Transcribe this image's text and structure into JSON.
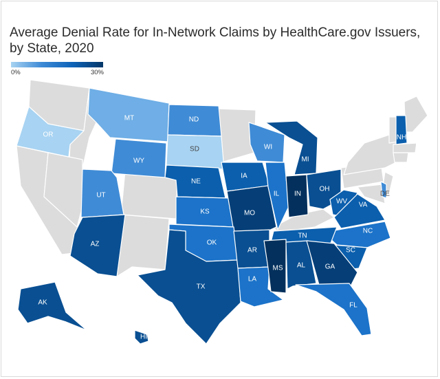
{
  "title": "Average Denial Rate for In-Network Claims by HealthCare.gov Issuers, by State, 2020",
  "legend": {
    "min_label": "0%",
    "max_label": "30%",
    "scale_min": 0,
    "scale_max": 30
  },
  "colors": {
    "no_data": "#dcdcdc",
    "bins": {
      "b1": "#a8d3f2",
      "b2": "#6faee6",
      "b3": "#3f8bd6",
      "b4": "#1c73c9",
      "b5": "#0b5fad",
      "b6": "#094f92",
      "b7": "#063f78",
      "b8": "#03305c"
    }
  },
  "states": {
    "OR": {
      "label": "OR",
      "bin": "b1"
    },
    "MT": {
      "label": "MT",
      "bin": "b2"
    },
    "ND": {
      "label": "ND",
      "bin": "b3"
    },
    "SD": {
      "label": "SD",
      "bin": "b1"
    },
    "WY": {
      "label": "WY",
      "bin": "b3"
    },
    "UT": {
      "label": "UT",
      "bin": "b3"
    },
    "WI": {
      "label": "WI",
      "bin": "b3"
    },
    "NE": {
      "label": "NE",
      "bin": "b5"
    },
    "IA": {
      "label": "IA",
      "bin": "b5"
    },
    "KS": {
      "label": "KS",
      "bin": "b4"
    },
    "MO": {
      "label": "MO",
      "bin": "b7"
    },
    "IL": {
      "label": "IL",
      "bin": "b4"
    },
    "IN": {
      "label": "IN",
      "bin": "b8"
    },
    "MI": {
      "label": "MI",
      "bin": "b6"
    },
    "OH": {
      "label": "OH",
      "bin": "b6"
    },
    "WV": {
      "label": "WV",
      "bin": "b5"
    },
    "VA": {
      "label": "VA",
      "bin": "b5"
    },
    "NC": {
      "label": "NC",
      "bin": "b4"
    },
    "SC": {
      "label": "SC",
      "bin": "b5"
    },
    "TN": {
      "label": "TN",
      "bin": "b5"
    },
    "OK": {
      "label": "OK",
      "bin": "b4"
    },
    "TX": {
      "label": "TX",
      "bin": "b6"
    },
    "AR": {
      "label": "AR",
      "bin": "b6"
    },
    "LA": {
      "label": "LA",
      "bin": "b4"
    },
    "MS": {
      "label": "MS",
      "bin": "b8"
    },
    "AL": {
      "label": "AL",
      "bin": "b6"
    },
    "GA": {
      "label": "GA",
      "bin": "b7"
    },
    "FL": {
      "label": "FL",
      "bin": "b4"
    },
    "AZ": {
      "label": "AZ",
      "bin": "b6"
    },
    "AK": {
      "label": "AK",
      "bin": "b6"
    },
    "HI": {
      "label": "HI",
      "bin": "b6"
    },
    "NH": {
      "label": "NH",
      "bin": "b5"
    },
    "DE": {
      "label": "DE",
      "bin": "b3"
    }
  }
}
